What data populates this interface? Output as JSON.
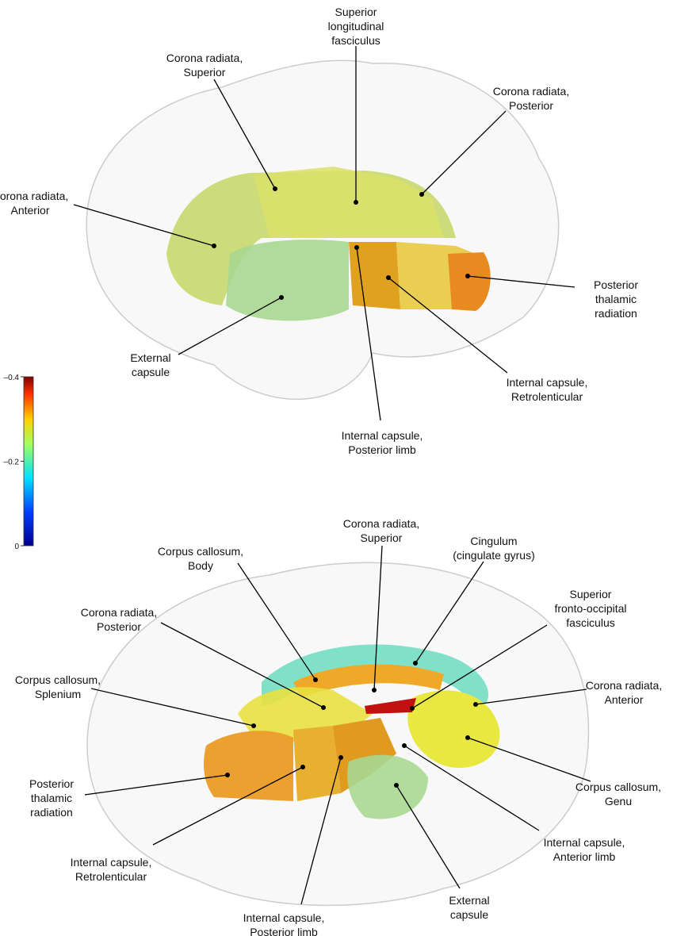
{
  "colorbar": {
    "lim": [
      -0.4,
      0
    ],
    "ticks": [
      {
        "value": -0.4,
        "label": "–0.4"
      },
      {
        "value": -0.2,
        "label": "–0.2"
      },
      0
    ]
  },
  "top_view": {
    "labels": [
      {
        "lines": [
          "Superior",
          "longitudinal",
          "fasciculus"
        ]
      },
      {
        "lines": [
          "Corona radiata,",
          "Superior"
        ]
      },
      {
        "lines": [
          "Corona radiata,",
          "Posterior"
        ]
      },
      {
        "lines": [
          "Corona radiata,",
          "Anterior"
        ]
      },
      {
        "lines": [
          "Posterior",
          "thalamic",
          "radiation"
        ]
      },
      {
        "lines": [
          "External",
          "capsule"
        ]
      },
      {
        "lines": [
          "Internal capsule,",
          "Retrolenticular"
        ]
      },
      {
        "lines": [
          "Internal capsule,",
          "Posterior limb"
        ]
      }
    ]
  },
  "bottom_view": {
    "labels": [
      {
        "lines": [
          "Corona radiata,",
          "Superior"
        ]
      },
      {
        "lines": [
          "Cingulum",
          "(cingulate gyrus)"
        ]
      },
      {
        "lines": [
          "Corpus callosum,",
          "Body"
        ]
      },
      {
        "lines": [
          "Superior",
          "fronto-occipital",
          "fasciculus"
        ]
      },
      {
        "lines": [
          "Corona radiata,",
          "Posterior"
        ]
      },
      {
        "lines": [
          "Corona radiata,",
          "Anterior"
        ]
      },
      {
        "lines": [
          "Corpus callosum,",
          "Splenium"
        ]
      },
      {
        "lines": [
          "Posterior",
          "thalamic",
          "radiation"
        ]
      },
      {
        "lines": [
          "Corpus callosum,",
          "Genu"
        ]
      },
      {
        "lines": [
          "Internal capsule,",
          "Retrolenticular"
        ]
      },
      {
        "lines": [
          "Internal capsule,",
          "Anterior limb"
        ]
      },
      {
        "lines": [
          "Internal capsule,",
          "Posterior limb"
        ]
      },
      {
        "lines": [
          "External",
          "capsule"
        ]
      }
    ]
  }
}
